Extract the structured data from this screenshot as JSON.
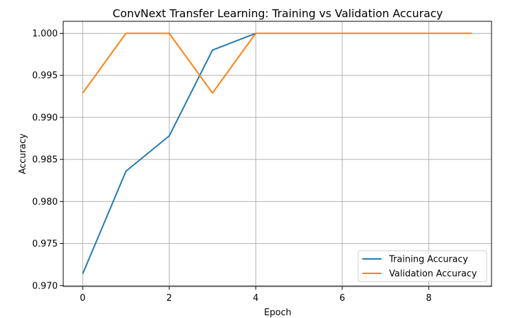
{
  "chart_data": {
    "type": "line",
    "title": "ConvNext Transfer Learning: Training vs Validation Accuracy",
    "xlabel": "Epoch",
    "ylabel": "Accuracy",
    "x": [
      0,
      1,
      2,
      3,
      4,
      5,
      6,
      7,
      8,
      9
    ],
    "xlim": [
      -0.45,
      9.45
    ],
    "ylim": [
      0.9699,
      1.00143
    ],
    "xticks": [
      0,
      2,
      4,
      6,
      8
    ],
    "xtick_labels": [
      "0",
      "2",
      "4",
      "6",
      "8"
    ],
    "yticks": [
      0.97,
      0.975,
      0.98,
      0.985,
      0.99,
      0.995,
      1.0
    ],
    "ytick_labels": [
      "0.970",
      "0.975",
      "0.980",
      "0.985",
      "0.990",
      "0.995",
      "1.000"
    ],
    "grid": true,
    "legend_position": "lower-right",
    "series": [
      {
        "name": "Training Accuracy",
        "color": "#1f77b4",
        "values": [
          0.9714,
          0.9836,
          0.9878,
          0.998,
          1.0,
          1.0,
          1.0,
          1.0,
          1.0,
          1.0
        ]
      },
      {
        "name": "Validation Accuracy",
        "color": "#ff7f0e",
        "values": [
          0.9929,
          1.0,
          1.0,
          0.9929,
          1.0,
          1.0,
          1.0,
          1.0,
          1.0,
          1.0
        ]
      }
    ]
  }
}
